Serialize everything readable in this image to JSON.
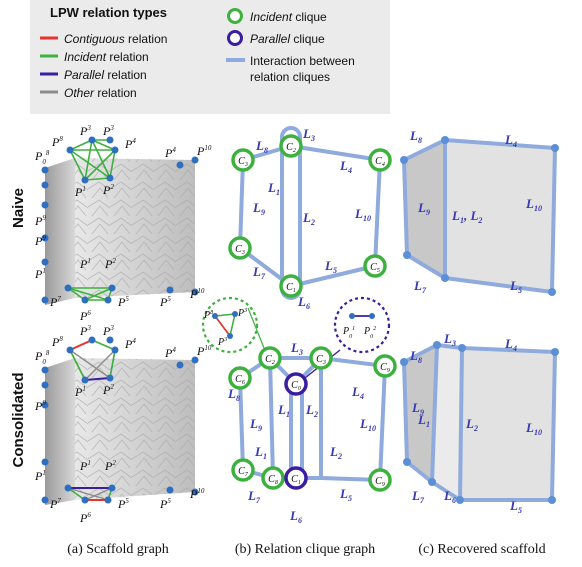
{
  "legend": {
    "title": "LPW relation types",
    "items": [
      {
        "italic": "Contiguous",
        "rest": " relation",
        "color": "#e8342c"
      },
      {
        "italic": "Incident",
        "rest": " relation",
        "color": "#3db13d"
      },
      {
        "italic": "Parallel",
        "rest": " relation",
        "color": "#3a1ea0"
      },
      {
        "italic": "Other",
        "rest": " relation",
        "color": "#8c8c8c"
      }
    ],
    "right_items": [
      {
        "italic": "Incident",
        "rest": " clique"
      },
      {
        "italic": "Parallel",
        "rest": " clique"
      },
      {
        "line1": "Interaction between",
        "line2": "relation cliques"
      }
    ]
  },
  "row_labels": {
    "naive": "Naive",
    "consolidated": "Consolidated"
  },
  "captions": {
    "a": "(a) Scaffold graph",
    "b": "(b) Relation clique graph",
    "c": "(c) Recovered scaffold"
  },
  "colors": {
    "incident": "#3db13d",
    "parallel": "#3a1ea0",
    "contiguous": "#e8342c",
    "other": "#8c8c8c",
    "interaction": "#8faadc",
    "label": "#3a3ab0",
    "node": "#2f6fc0"
  }
}
